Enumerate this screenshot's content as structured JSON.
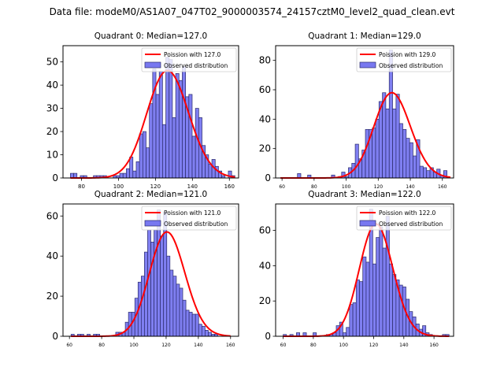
{
  "suptitle": "Data file: modeM0/AS1A07_047T02_9000003574_24157cztM0_level2_quad_clean.evt",
  "colors": {
    "bar_fill": "#7878f0",
    "bar_edge": "#2a2a6a",
    "curve": "#ff0000"
  },
  "chart_data": [
    {
      "type": "bar",
      "title": "Quadrant 0: Median=127.0",
      "legend": [
        "Poission with 127.0",
        "Observed distribution"
      ],
      "legend_position": "top-right",
      "xlim": [
        70,
        165
      ],
      "ylim": [
        0,
        57
      ],
      "xticks": [
        80,
        100,
        120,
        140,
        160
      ],
      "yticks": [
        0,
        10,
        20,
        30,
        40,
        50
      ],
      "bin_start": 74,
      "bin_width": 1.78,
      "values": [
        2,
        2,
        0,
        1,
        1,
        0,
        0,
        1,
        1,
        1,
        1,
        0,
        0,
        1,
        1,
        2,
        2,
        4,
        9,
        3,
        7,
        19,
        20,
        13,
        32,
        47,
        36,
        46,
        23,
        52,
        51,
        26,
        45,
        42,
        48,
        35,
        36,
        18,
        30,
        26,
        14,
        10,
        6,
        8,
        5,
        3,
        1,
        0,
        3,
        1
      ],
      "median": 127.0
    },
    {
      "type": "bar",
      "title": "Quadrant 1: Median=129.0",
      "legend": [
        "Poission with 129.0",
        "Observed distribution"
      ],
      "legend_position": "top-right",
      "xlim": [
        56,
        167
      ],
      "ylim": [
        0,
        90
      ],
      "xticks": [
        60,
        80,
        100,
        120,
        140,
        160
      ],
      "yticks": [
        0,
        20,
        40,
        60,
        80
      ],
      "bin_start": 59,
      "bin_width": 2.12,
      "values": [
        0,
        0,
        0,
        0,
        0,
        3,
        0,
        0,
        2,
        0,
        0,
        0,
        0,
        0,
        0,
        2,
        0,
        1,
        4,
        1,
        7,
        10,
        23,
        13,
        19,
        33,
        33,
        34,
        40,
        52,
        58,
        47,
        87,
        47,
        57,
        37,
        33,
        27,
        24,
        15,
        26,
        8,
        7,
        5,
        7,
        4,
        6,
        2,
        5,
        0
      ],
      "median": 129.0
    },
    {
      "type": "bar",
      "title": "Quadrant 2: Median=121.0",
      "legend": [
        "Poission with 121.0",
        "Observed distribution"
      ],
      "legend_position": "top-right",
      "xlim": [
        56,
        165
      ],
      "ylim": [
        0,
        66
      ],
      "xticks": [
        60,
        80,
        100,
        120,
        140,
        160
      ],
      "yticks": [
        0,
        20,
        40,
        60
      ],
      "bin_start": 61,
      "bin_width": 1.98,
      "values": [
        1,
        0,
        1,
        1,
        0,
        1,
        0,
        1,
        1,
        0,
        0,
        0,
        0,
        0,
        2,
        2,
        2,
        7,
        12,
        12,
        19,
        27,
        30,
        42,
        53,
        47,
        53,
        63,
        50,
        62,
        40,
        33,
        30,
        26,
        24,
        18,
        13,
        12,
        11,
        11,
        6,
        5,
        3,
        2,
        1,
        1,
        0,
        0,
        0,
        0
      ],
      "median": 121.0
    },
    {
      "type": "bar",
      "title": "Quadrant 3: Median=122.0",
      "legend": [
        "Poission with 122.0",
        "Observed distribution"
      ],
      "legend_position": "top-right",
      "xlim": [
        55,
        173
      ],
      "ylim": [
        0,
        75
      ],
      "xticks": [
        60,
        80,
        100,
        120,
        140,
        160
      ],
      "yticks": [
        0,
        20,
        40,
        60
      ],
      "bin_start": 60,
      "bin_width": 2.2,
      "values": [
        1,
        0,
        1,
        0,
        2,
        0,
        2,
        0,
        0,
        2,
        0,
        0,
        0,
        1,
        1,
        2,
        6,
        8,
        2,
        5,
        18,
        19,
        32,
        31,
        45,
        42,
        72,
        41,
        56,
        62,
        50,
        68,
        41,
        35,
        32,
        29,
        28,
        21,
        14,
        11,
        7,
        4,
        6,
        2,
        1,
        0,
        0,
        0,
        1,
        1
      ],
      "median": 122.0
    }
  ]
}
